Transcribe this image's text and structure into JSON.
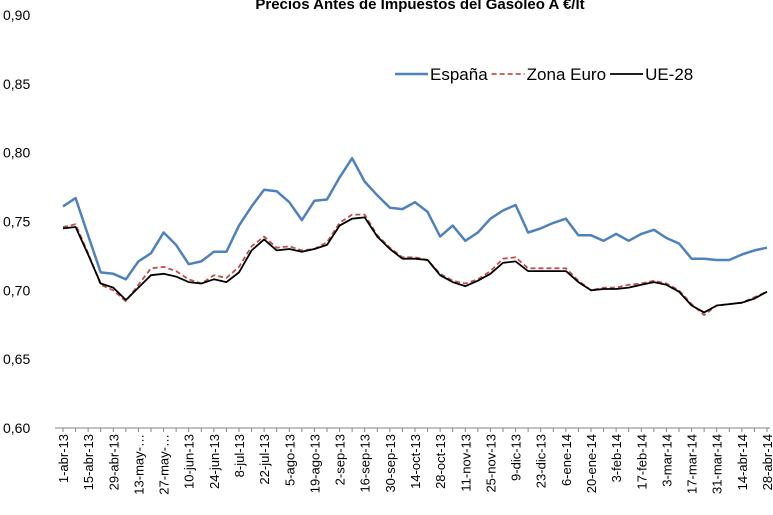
{
  "chart_data": {
    "type": "line",
    "title": "Precios Antes de Impuestos del Gasóleo A €/lt",
    "categories": [
      "1-abr-13",
      null,
      "15-abr-13",
      null,
      "29-abr-13",
      null,
      "13-may-…",
      null,
      "27-may-…",
      null,
      "10-jun-13",
      null,
      "24-jun-13",
      null,
      "8-jul-13",
      null,
      "22-jul-13",
      null,
      "5-ago-13",
      null,
      "19-ago-13",
      null,
      "2-sep-13",
      null,
      "16-sep-13",
      null,
      "30-sep-13",
      null,
      "14-oct-13",
      null,
      "28-oct-13",
      null,
      "11-nov-13",
      null,
      "25-nov-13",
      null,
      "9-dic-13",
      null,
      "23-dic-13",
      null,
      "6-ene-14",
      null,
      "20-ene-14",
      null,
      "3-feb-14",
      null,
      "17-feb-14",
      null,
      "3-mar-14",
      null,
      "17-mar-14",
      null,
      "31-mar-14",
      null,
      "14-abr-14",
      null,
      "28-abr-14"
    ],
    "series": [
      {
        "name": "España",
        "color": "#4f81bd",
        "values": [
          0.761,
          0.767,
          0.74,
          0.713,
          0.712,
          0.708,
          0.721,
          0.727,
          0.742,
          0.733,
          0.719,
          0.721,
          0.728,
          0.728,
          0.747,
          0.761,
          0.773,
          0.772,
          0.764,
          0.751,
          0.765,
          0.766,
          0.782,
          0.796,
          0.779,
          0.769,
          0.76,
          0.759,
          0.764,
          0.757,
          0.739,
          0.747,
          0.736,
          0.742,
          0.752,
          0.758,
          0.762,
          0.742,
          0.745,
          0.749,
          0.752,
          0.74,
          0.74,
          0.736,
          0.741,
          0.736,
          0.741,
          0.744,
          0.738,
          0.734,
          0.723,
          0.723,
          0.722,
          0.722,
          0.726,
          0.729,
          0.731
        ]
      },
      {
        "name": "Zona Euro",
        "color": "#c0504d",
        "dashed": true,
        "values": [
          0.746,
          0.748,
          0.727,
          0.704,
          0.7,
          0.692,
          0.704,
          0.716,
          0.717,
          0.714,
          0.708,
          0.705,
          0.711,
          0.709,
          0.717,
          0.732,
          0.739,
          0.731,
          0.732,
          0.729,
          0.73,
          0.735,
          0.749,
          0.755,
          0.755,
          0.74,
          0.731,
          0.724,
          0.724,
          0.722,
          0.712,
          0.707,
          0.705,
          0.708,
          0.714,
          0.723,
          0.724,
          0.716,
          0.716,
          0.716,
          0.716,
          0.707,
          0.7,
          0.702,
          0.702,
          0.704,
          0.705,
          0.707,
          0.705,
          0.7,
          0.69,
          0.682,
          0.689,
          0.69,
          0.691,
          0.695,
          0.699
        ]
      },
      {
        "name": "UE-28",
        "color": "#000000",
        "values": [
          0.745,
          0.746,
          0.726,
          0.705,
          0.702,
          0.693,
          0.702,
          0.711,
          0.712,
          0.71,
          0.706,
          0.705,
          0.708,
          0.706,
          0.713,
          0.729,
          0.737,
          0.729,
          0.73,
          0.728,
          0.73,
          0.733,
          0.747,
          0.752,
          0.753,
          0.739,
          0.73,
          0.723,
          0.723,
          0.722,
          0.711,
          0.706,
          0.703,
          0.707,
          0.712,
          0.72,
          0.721,
          0.714,
          0.714,
          0.714,
          0.714,
          0.706,
          0.7,
          0.701,
          0.701,
          0.702,
          0.704,
          0.706,
          0.704,
          0.699,
          0.689,
          0.684,
          0.689,
          0.69,
          0.691,
          0.694,
          0.699
        ]
      }
    ],
    "ylim": [
      0.6,
      0.9
    ],
    "yticks": [
      {
        "value": 0.6,
        "label": "0,60"
      },
      {
        "value": 0.65,
        "label": "0,65"
      },
      {
        "value": 0.7,
        "label": "0,70"
      },
      {
        "value": 0.75,
        "label": "0,75"
      },
      {
        "value": 0.8,
        "label": "0,80"
      },
      {
        "value": 0.85,
        "label": "0,85"
      },
      {
        "value": 0.9,
        "label": "0,90"
      }
    ],
    "grid": false,
    "legend": "top-right"
  }
}
